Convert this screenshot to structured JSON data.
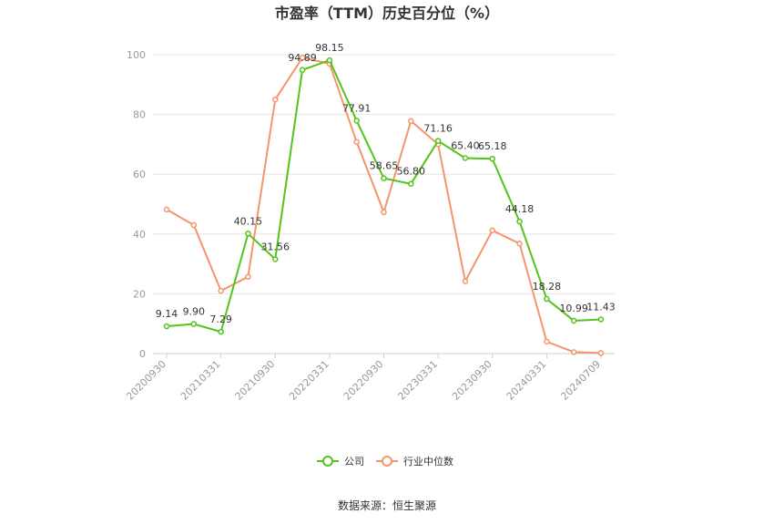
{
  "chart_data": {
    "type": "line",
    "title": "市盈率（TTM）历史百分位（%）",
    "source": "数据来源：恒生聚源",
    "ylim": [
      0,
      100
    ],
    "yticks": [
      "0",
      "20",
      "40",
      "60",
      "80",
      "100"
    ],
    "x_ticklabels": [
      "20200930",
      "20210331",
      "20210930",
      "20220331",
      "20220930",
      "20230331",
      "20230930",
      "20240331",
      "20240709"
    ],
    "grid": true,
    "legend_position": "bottom",
    "series": [
      {
        "name": "公司",
        "color": "#52c41a",
        "values": [
          9.14,
          9.9,
          7.29,
          40.15,
          31.56,
          94.89,
          98.15,
          77.91,
          58.65,
          56.8,
          71.16,
          65.4,
          65.18,
          44.18,
          18.28,
          10.99,
          11.43
        ],
        "labels": [
          "9.14",
          "9.90",
          "7.29",
          "40.15",
          "31.56",
          "94.89",
          "98.15",
          "77.91",
          "58.65",
          "56.80",
          "71.16",
          "65.40",
          "65.18",
          "44.18",
          "18.28",
          "10.99",
          "11.43"
        ]
      },
      {
        "name": "行业中位数",
        "color": "#f5956b",
        "values": [
          48.2,
          43.0,
          21.0,
          25.7,
          85.0,
          99.0,
          97.0,
          70.8,
          47.3,
          77.8,
          70.0,
          24.2,
          41.2,
          36.8,
          4.0,
          0.5,
          0.2
        ]
      }
    ]
  }
}
